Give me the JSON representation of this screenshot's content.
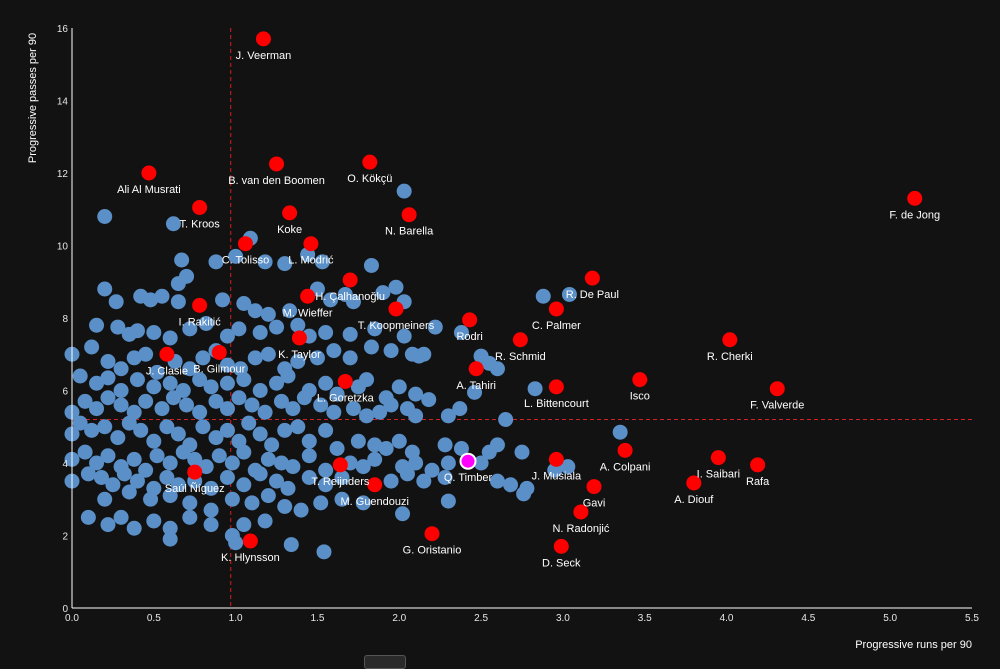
{
  "colors": {
    "background": "#121212",
    "grey_point": "#5a8fc7",
    "red_point": "#ff0000",
    "highlight_point": "#ff00ff",
    "ref_line": "#d42020",
    "axis": "#ffffff"
  },
  "chart_data": {
    "type": "scatter",
    "xlabel": "Progressive runs per 90",
    "ylabel": "Progressive passes per 90",
    "xlim": [
      0,
      5.5
    ],
    "ylim": [
      0,
      16
    ],
    "xticks": [
      "0.0",
      "0.5",
      "1.0",
      "1.5",
      "2.0",
      "2.5",
      "3.0",
      "3.5",
      "4.0",
      "4.5",
      "5.0",
      "5.5"
    ],
    "yticks": [
      "0",
      "2",
      "4",
      "6",
      "8",
      "10",
      "12",
      "14",
      "16"
    ],
    "xtick_values": [
      0,
      0.5,
      1,
      1.5,
      2,
      2.5,
      3,
      3.5,
      4,
      4.5,
      5,
      5.5
    ],
    "ytick_values": [
      0,
      2,
      4,
      6,
      8,
      10,
      12,
      14,
      16
    ],
    "reference_lines": {
      "x": 0.97,
      "y": 5.2
    },
    "highlighted": [
      {
        "name": "J. Veerman",
        "x": 1.17,
        "y": 15.7
      },
      {
        "name": "Ali Al Musrati",
        "x": 0.47,
        "y": 12.0
      },
      {
        "name": "B. van den Boomen",
        "x": 1.25,
        "y": 12.25
      },
      {
        "name": "O. Kökçü",
        "x": 1.82,
        "y": 12.3
      },
      {
        "name": "F. de Jong",
        "x": 5.15,
        "y": 11.3
      },
      {
        "name": "T. Kroos",
        "x": 0.78,
        "y": 11.05
      },
      {
        "name": "Koke",
        "x": 1.33,
        "y": 10.9
      },
      {
        "name": "N. Barella",
        "x": 2.06,
        "y": 10.85
      },
      {
        "name": "C. Tolisso",
        "x": 1.06,
        "y": 10.05
      },
      {
        "name": "L. Modrić",
        "x": 1.46,
        "y": 10.05
      },
      {
        "name": "R. De Paul",
        "x": 3.18,
        "y": 9.1
      },
      {
        "name": "H. Çalhanoğlu",
        "x": 1.7,
        "y": 9.05
      },
      {
        "name": "C. Palmer",
        "x": 2.96,
        "y": 8.25
      },
      {
        "name": "I. Rakitić",
        "x": 0.78,
        "y": 8.35
      },
      {
        "name": "M. Wieffer",
        "x": 1.44,
        "y": 8.6
      },
      {
        "name": "T. Koopmeiners",
        "x": 1.98,
        "y": 8.25
      },
      {
        "name": "Rodri",
        "x": 2.43,
        "y": 7.95
      },
      {
        "name": "R. Schmid",
        "x": 2.74,
        "y": 7.4
      },
      {
        "name": "R. Cherki",
        "x": 4.02,
        "y": 7.4
      },
      {
        "name": "K. Taylor",
        "x": 1.39,
        "y": 7.45
      },
      {
        "name": "J. Clasie",
        "x": 0.58,
        "y": 7.0
      },
      {
        "name": "B. Gilmour",
        "x": 0.9,
        "y": 7.05
      },
      {
        "name": "A. Tahiri",
        "x": 2.47,
        "y": 6.6
      },
      {
        "name": "Isco",
        "x": 3.47,
        "y": 6.3
      },
      {
        "name": "L. Goretzka",
        "x": 1.67,
        "y": 6.25
      },
      {
        "name": "L. Bittencourt",
        "x": 2.96,
        "y": 6.1
      },
      {
        "name": "F. Valverde",
        "x": 4.31,
        "y": 6.05
      },
      {
        "name": "A. Colpani",
        "x": 3.38,
        "y": 4.35
      },
      {
        "name": "I. Saibari",
        "x": 3.95,
        "y": 4.15
      },
      {
        "name": "J. Musiala",
        "x": 2.96,
        "y": 4.1
      },
      {
        "name": "Rafa",
        "x": 4.19,
        "y": 3.95
      },
      {
        "name": "T. Reijnders",
        "x": 1.64,
        "y": 3.95
      },
      {
        "name": "Saúl Ñíguez",
        "x": 0.75,
        "y": 3.75
      },
      {
        "name": "Gavi",
        "x": 3.19,
        "y": 3.35
      },
      {
        "name": "A. Diouf",
        "x": 3.8,
        "y": 3.45
      },
      {
        "name": "M. Guendouzi",
        "x": 1.85,
        "y": 3.4
      },
      {
        "name": "N. Radonjić",
        "x": 3.11,
        "y": 2.65
      },
      {
        "name": "G. Oristanio",
        "x": 2.2,
        "y": 2.05
      },
      {
        "name": "D. Seck",
        "x": 2.99,
        "y": 1.7
      },
      {
        "name": "K. Hlynsson",
        "x": 1.09,
        "y": 1.85
      },
      {
        "name": "Q. Timber",
        "x": 2.42,
        "y": 4.05
      }
    ],
    "grey_points": [
      [
        0.2,
        10.8
      ],
      [
        0.62,
        10.6
      ],
      [
        0.67,
        9.6
      ],
      [
        0.88,
        9.55
      ],
      [
        1.0,
        9.7
      ],
      [
        1.09,
        10.2
      ],
      [
        1.18,
        9.55
      ],
      [
        1.3,
        9.5
      ],
      [
        1.44,
        9.75
      ],
      [
        1.53,
        9.55
      ],
      [
        1.83,
        9.45
      ],
      [
        2.03,
        11.5
      ],
      [
        0.2,
        8.8
      ],
      [
        0.27,
        8.45
      ],
      [
        0.42,
        8.6
      ],
      [
        0.48,
        8.5
      ],
      [
        0.55,
        8.6
      ],
      [
        0.65,
        8.95
      ],
      [
        0.7,
        9.15
      ],
      [
        0.65,
        8.45
      ],
      [
        0.92,
        8.5
      ],
      [
        1.05,
        8.4
      ],
      [
        1.12,
        8.2
      ],
      [
        1.2,
        8.1
      ],
      [
        1.33,
        8.2
      ],
      [
        1.5,
        8.8
      ],
      [
        1.58,
        8.5
      ],
      [
        1.67,
        8.65
      ],
      [
        1.72,
        8.45
      ],
      [
        1.9,
        8.7
      ],
      [
        1.98,
        8.85
      ],
      [
        2.03,
        8.45
      ],
      [
        2.88,
        8.6
      ],
      [
        3.04,
        8.65
      ],
      [
        0.15,
        7.8
      ],
      [
        0.28,
        7.75
      ],
      [
        0.35,
        7.55
      ],
      [
        0.4,
        7.65
      ],
      [
        0.5,
        7.6
      ],
      [
        0.6,
        7.45
      ],
      [
        0.72,
        7.7
      ],
      [
        0.82,
        7.85
      ],
      [
        0.95,
        7.5
      ],
      [
        1.02,
        7.7
      ],
      [
        1.15,
        7.6
      ],
      [
        1.25,
        7.75
      ],
      [
        1.38,
        7.8
      ],
      [
        1.45,
        7.5
      ],
      [
        1.55,
        7.6
      ],
      [
        1.7,
        7.55
      ],
      [
        1.85,
        7.7
      ],
      [
        2.03,
        7.5
      ],
      [
        2.22,
        7.75
      ],
      [
        2.38,
        7.6
      ],
      [
        0.0,
        7.0
      ],
      [
        0.12,
        7.2
      ],
      [
        0.22,
        6.8
      ],
      [
        0.3,
        6.6
      ],
      [
        0.38,
        6.9
      ],
      [
        0.45,
        7.0
      ],
      [
        0.52,
        6.5
      ],
      [
        0.63,
        6.8
      ],
      [
        0.72,
        6.6
      ],
      [
        0.8,
        6.9
      ],
      [
        0.88,
        7.1
      ],
      [
        0.95,
        6.7
      ],
      [
        1.03,
        6.6
      ],
      [
        1.12,
        6.9
      ],
      [
        1.2,
        7.0
      ],
      [
        1.3,
        6.6
      ],
      [
        1.38,
        6.8
      ],
      [
        1.5,
        6.9
      ],
      [
        1.6,
        7.1
      ],
      [
        1.7,
        6.9
      ],
      [
        1.83,
        7.2
      ],
      [
        1.95,
        7.1
      ],
      [
        2.08,
        7.0
      ],
      [
        2.12,
        6.95
      ],
      [
        2.15,
        7.0
      ],
      [
        2.5,
        6.95
      ],
      [
        2.55,
        6.75
      ],
      [
        2.6,
        6.6
      ],
      [
        0.05,
        6.4
      ],
      [
        0.15,
        6.2
      ],
      [
        0.22,
        6.35
      ],
      [
        0.3,
        6.0
      ],
      [
        0.4,
        6.3
      ],
      [
        0.5,
        6.1
      ],
      [
        0.6,
        6.2
      ],
      [
        0.68,
        6.0
      ],
      [
        0.78,
        6.3
      ],
      [
        0.85,
        6.1
      ],
      [
        0.95,
        6.2
      ],
      [
        1.05,
        6.3
      ],
      [
        1.15,
        6.0
      ],
      [
        1.25,
        6.2
      ],
      [
        1.32,
        6.4
      ],
      [
        1.45,
        6.0
      ],
      [
        1.55,
        6.2
      ],
      [
        1.62,
        5.9
      ],
      [
        1.75,
        6.1
      ],
      [
        1.8,
        6.3
      ],
      [
        1.92,
        5.8
      ],
      [
        2.0,
        6.1
      ],
      [
        2.1,
        5.9
      ],
      [
        2.18,
        5.75
      ],
      [
        2.46,
        5.95
      ],
      [
        2.83,
        6.05
      ],
      [
        0.0,
        5.4
      ],
      [
        0.08,
        5.7
      ],
      [
        0.15,
        5.5
      ],
      [
        0.22,
        5.8
      ],
      [
        0.3,
        5.6
      ],
      [
        0.38,
        5.4
      ],
      [
        0.45,
        5.7
      ],
      [
        0.55,
        5.5
      ],
      [
        0.62,
        5.8
      ],
      [
        0.7,
        5.6
      ],
      [
        0.78,
        5.4
      ],
      [
        0.88,
        5.7
      ],
      [
        0.95,
        5.5
      ],
      [
        1.02,
        5.8
      ],
      [
        1.1,
        5.6
      ],
      [
        1.18,
        5.4
      ],
      [
        1.28,
        5.7
      ],
      [
        1.35,
        5.5
      ],
      [
        1.42,
        5.8
      ],
      [
        1.52,
        5.6
      ],
      [
        1.6,
        5.4
      ],
      [
        1.72,
        5.5
      ],
      [
        1.8,
        5.3
      ],
      [
        1.88,
        5.4
      ],
      [
        1.95,
        5.6
      ],
      [
        2.05,
        5.5
      ],
      [
        2.1,
        5.3
      ],
      [
        2.3,
        5.3
      ],
      [
        2.37,
        5.5
      ],
      [
        2.65,
        5.2
      ],
      [
        0.0,
        4.8
      ],
      [
        0.05,
        5.1
      ],
      [
        0.12,
        4.9
      ],
      [
        0.2,
        5.0
      ],
      [
        0.28,
        4.7
      ],
      [
        0.35,
        5.1
      ],
      [
        0.42,
        4.9
      ],
      [
        0.5,
        4.6
      ],
      [
        0.58,
        5.0
      ],
      [
        0.65,
        4.8
      ],
      [
        0.72,
        4.5
      ],
      [
        0.8,
        5.0
      ],
      [
        0.88,
        4.7
      ],
      [
        0.95,
        4.9
      ],
      [
        1.02,
        4.6
      ],
      [
        1.08,
        5.1
      ],
      [
        1.15,
        4.8
      ],
      [
        1.22,
        4.5
      ],
      [
        1.3,
        4.9
      ],
      [
        1.38,
        5.0
      ],
      [
        1.45,
        4.6
      ],
      [
        1.55,
        4.9
      ],
      [
        1.62,
        4.4
      ],
      [
        1.75,
        4.6
      ],
      [
        1.85,
        4.5
      ],
      [
        1.92,
        4.4
      ],
      [
        2.0,
        4.6
      ],
      [
        2.08,
        4.3
      ],
      [
        2.28,
        4.5
      ],
      [
        2.38,
        4.4
      ],
      [
        2.55,
        4.3
      ],
      [
        2.6,
        4.5
      ],
      [
        2.75,
        4.3
      ],
      [
        3.35,
        4.85
      ],
      [
        0.0,
        4.1
      ],
      [
        0.08,
        4.3
      ],
      [
        0.15,
        4.0
      ],
      [
        0.22,
        4.2
      ],
      [
        0.3,
        3.9
      ],
      [
        0.38,
        4.1
      ],
      [
        0.45,
        3.8
      ],
      [
        0.52,
        4.2
      ],
      [
        0.6,
        4.0
      ],
      [
        0.68,
        4.3
      ],
      [
        0.75,
        4.1
      ],
      [
        0.82,
        3.9
      ],
      [
        0.9,
        4.2
      ],
      [
        0.98,
        4.0
      ],
      [
        1.05,
        4.3
      ],
      [
        1.12,
        3.8
      ],
      [
        1.2,
        4.1
      ],
      [
        1.28,
        4.0
      ],
      [
        1.35,
        3.9
      ],
      [
        1.45,
        4.2
      ],
      [
        1.55,
        3.8
      ],
      [
        1.7,
        4.0
      ],
      [
        1.78,
        3.9
      ],
      [
        1.85,
        4.1
      ],
      [
        2.02,
        3.9
      ],
      [
        2.1,
        4.0
      ],
      [
        2.2,
        3.8
      ],
      [
        2.3,
        4.0
      ],
      [
        2.5,
        4.0
      ],
      [
        2.95,
        3.8
      ],
      [
        3.03,
        3.9
      ],
      [
        0.0,
        3.5
      ],
      [
        0.1,
        3.7
      ],
      [
        0.18,
        3.6
      ],
      [
        0.25,
        3.4
      ],
      [
        0.32,
        3.7
      ],
      [
        0.4,
        3.5
      ],
      [
        0.5,
        3.3
      ],
      [
        0.58,
        3.6
      ],
      [
        0.65,
        3.4
      ],
      [
        0.75,
        3.5
      ],
      [
        0.85,
        3.3
      ],
      [
        0.95,
        3.6
      ],
      [
        1.05,
        3.4
      ],
      [
        1.15,
        3.7
      ],
      [
        1.25,
        3.5
      ],
      [
        1.32,
        3.3
      ],
      [
        1.45,
        3.6
      ],
      [
        1.55,
        3.4
      ],
      [
        1.65,
        3.6
      ],
      [
        1.95,
        3.5
      ],
      [
        2.05,
        3.7
      ],
      [
        2.15,
        3.5
      ],
      [
        2.28,
        3.6
      ],
      [
        2.6,
        3.5
      ],
      [
        2.68,
        3.4
      ],
      [
        2.78,
        3.3
      ],
      [
        2.76,
        3.15
      ],
      [
        0.2,
        3.0
      ],
      [
        0.35,
        3.2
      ],
      [
        0.48,
        3.0
      ],
      [
        0.6,
        3.1
      ],
      [
        0.72,
        2.9
      ],
      [
        0.85,
        2.7
      ],
      [
        0.98,
        3.0
      ],
      [
        1.1,
        2.9
      ],
      [
        1.2,
        3.1
      ],
      [
        1.3,
        2.8
      ],
      [
        1.4,
        2.7
      ],
      [
        1.52,
        2.9
      ],
      [
        1.65,
        3.0
      ],
      [
        1.78,
        2.9
      ],
      [
        2.02,
        2.6
      ],
      [
        2.3,
        2.95
      ],
      [
        0.1,
        2.5
      ],
      [
        0.22,
        2.3
      ],
      [
        0.3,
        2.5
      ],
      [
        0.38,
        2.2
      ],
      [
        0.5,
        2.4
      ],
      [
        0.6,
        2.2
      ],
      [
        0.72,
        2.5
      ],
      [
        0.85,
        2.3
      ],
      [
        0.98,
        2.0
      ],
      [
        1.05,
        2.3
      ],
      [
        1.18,
        2.4
      ],
      [
        0.6,
        1.9
      ],
      [
        1.0,
        1.8
      ],
      [
        1.34,
        1.75
      ],
      [
        1.54,
        1.55
      ]
    ]
  }
}
